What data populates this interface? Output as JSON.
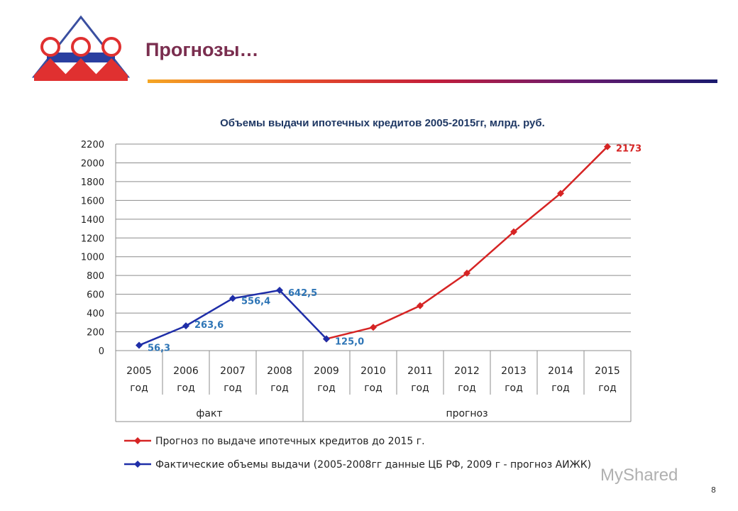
{
  "header": {
    "title": "Прогнозы…"
  },
  "brand": {
    "accent": "#7a2e4f"
  },
  "chart_data": {
    "type": "line",
    "title": "Объемы выдачи ипотечных кредитов 2005-2015гг, млрд. руб.",
    "categories": [
      "2005 год",
      "2006 год",
      "2007 год",
      "2008 год",
      "2009 год",
      "2010 год",
      "2011 год",
      "2012 год",
      "2013 год",
      "2014 год",
      "2015 год"
    ],
    "category_lines": [
      [
        "2005",
        "год"
      ],
      [
        "2006",
        "год"
      ],
      [
        "2007",
        "год"
      ],
      [
        "2008",
        "год"
      ],
      [
        "2009",
        "год"
      ],
      [
        "2010",
        "год"
      ],
      [
        "2011",
        "год"
      ],
      [
        "2012",
        "год"
      ],
      [
        "2013",
        "год"
      ],
      [
        "2014",
        "год"
      ],
      [
        "2015",
        "год"
      ]
    ],
    "groups": [
      {
        "label": "факт",
        "from": 0,
        "to": 3
      },
      {
        "label": "прогноз",
        "from": 4,
        "to": 10
      }
    ],
    "ylim": [
      0,
      2200
    ],
    "yticks": [
      0,
      200,
      400,
      600,
      800,
      1000,
      1200,
      1400,
      1600,
      1800,
      2000,
      2200
    ],
    "grid": true,
    "legend_position": "bottom",
    "series": [
      {
        "name": "Прогноз по выдаче ипотечных кредитов до 2015 г.",
        "color": "#d62424",
        "label_color": "#d62424",
        "x": [
          4,
          5,
          6,
          7,
          8,
          9,
          10
        ],
        "values": [
          125,
          248,
          478,
          825,
          1265,
          1675,
          2173
        ],
        "labels": {
          "10": "2173"
        }
      },
      {
        "name": "Фактические объемы выдачи (2005-2008гг данные ЦБ РФ, 2009 г - прогноз АИЖК)",
        "color": "#1f2ea8",
        "label_color": "#2e75b6",
        "x": [
          0,
          1,
          2,
          3,
          4
        ],
        "values": [
          56.3,
          263.6,
          556.4,
          642.5,
          125.0
        ],
        "labels": {
          "0": "56,3",
          "1": "263,6",
          "2": "556,4",
          "3": "642,5",
          "4": "125,0"
        }
      }
    ]
  },
  "watermark": "MyShared",
  "page_number": "8"
}
